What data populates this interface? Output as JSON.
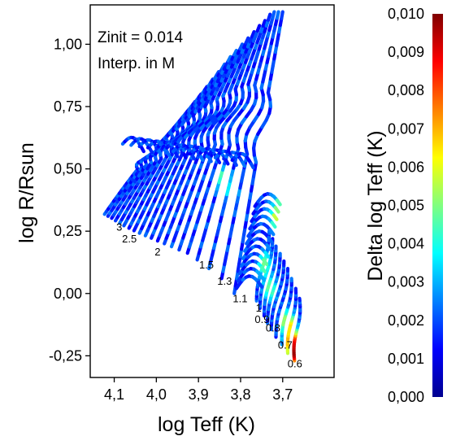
{
  "chart_data": {
    "type": "scatter",
    "title": "",
    "xlabel": "log Teff (K)",
    "ylabel": "log R/Rsun",
    "xlim": [
      4.157,
      3.578
    ],
    "ylim": [
      -0.337,
      1.158
    ],
    "x_reversed": true,
    "xticks": [
      4.1,
      4.0,
      3.9,
      3.8,
      3.7
    ],
    "xtick_labels": [
      "4,1",
      "4,0",
      "3,9",
      "3,8",
      "3,7"
    ],
    "yticks": [
      -0.25,
      0.0,
      0.25,
      0.5,
      0.75,
      1.0
    ],
    "ytick_labels": [
      "-0,25",
      "0,00",
      "0,25",
      "0,50",
      "0,75",
      "1,00"
    ],
    "annotations": [
      "Zinit = 0.014",
      "Interp. in M"
    ],
    "colorbar": {
      "label": "Delta log Teff (K)",
      "range": [
        0.0,
        0.01
      ],
      "ticks": [
        0.0,
        0.001,
        0.002,
        0.003,
        0.004,
        0.005,
        0.006,
        0.007,
        0.008,
        0.009,
        0.01
      ],
      "tick_labels": [
        "0,000",
        "0,001",
        "0,002",
        "0,003",
        "0,004",
        "0,005",
        "0,006",
        "0,007",
        "0,008",
        "0,009",
        "0,010"
      ],
      "colormap": "jet",
      "colors": [
        "#00008f",
        "#0000ff",
        "#0080ff",
        "#00ffff",
        "#80ff80",
        "#ffff00",
        "#ff8000",
        "#ff0000",
        "#800000"
      ]
    },
    "mass_labels": [
      {
        "text": "3",
        "x": 4.088,
        "y": 0.252
      },
      {
        "text": "2.5",
        "x": 4.064,
        "y": 0.205
      },
      {
        "text": "2",
        "x": 3.997,
        "y": 0.153
      },
      {
        "text": "1.5",
        "x": 3.881,
        "y": 0.1
      },
      {
        "text": "1.3",
        "x": 3.838,
        "y": 0.035
      },
      {
        "text": "1.1",
        "x": 3.801,
        "y": -0.035
      },
      {
        "text": "1",
        "x": 3.757,
        "y": -0.072
      },
      {
        "text": "0.9",
        "x": 3.749,
        "y": -0.119
      },
      {
        "text": "0.8",
        "x": 3.723,
        "y": -0.153
      },
      {
        "text": "0.7",
        "x": 3.694,
        "y": -0.221
      },
      {
        "text": "0.6",
        "x": 3.671,
        "y": -0.297
      }
    ],
    "tracks": [
      {
        "mass": 3.0,
        "zams": [
          4.123,
          0.318
        ],
        "top": [
          3.948,
          0.68
        ]
      },
      {
        "mass": 2.9,
        "zams": [
          4.115,
          0.31
        ],
        "top": [
          3.935,
          0.71
        ]
      },
      {
        "mass": 2.8,
        "zams": [
          4.106,
          0.302
        ],
        "top": [
          3.922,
          0.74
        ]
      },
      {
        "mass": 2.7,
        "zams": [
          4.097,
          0.292
        ],
        "top": [
          3.908,
          0.77
        ]
      },
      {
        "mass": 2.6,
        "zams": [
          4.087,
          0.282
        ],
        "top": [
          3.894,
          0.8
        ]
      },
      {
        "mass": 2.5,
        "zams": [
          4.077,
          0.272
        ],
        "top": [
          3.88,
          0.83
        ]
      },
      {
        "mass": 2.4,
        "zams": [
          4.065,
          0.262
        ],
        "top": [
          3.866,
          0.86
        ]
      },
      {
        "mass": 2.3,
        "zams": [
          4.053,
          0.252
        ],
        "top": [
          3.852,
          0.89
        ]
      },
      {
        "mass": 2.2,
        "zams": [
          4.04,
          0.242
        ],
        "top": [
          3.838,
          0.92
        ]
      },
      {
        "mass": 2.1,
        "zams": [
          4.026,
          0.232
        ],
        "top": [
          3.824,
          0.95
        ]
      },
      {
        "mass": 2.0,
        "zams": [
          4.012,
          0.222
        ],
        "top": [
          3.81,
          0.975
        ]
      },
      {
        "mass": 1.9,
        "zams": [
          3.997,
          0.211
        ],
        "top": [
          3.796,
          1.0
        ]
      },
      {
        "mass": 1.8,
        "zams": [
          3.981,
          0.2
        ],
        "top": [
          3.782,
          1.025
        ]
      },
      {
        "mass": 1.7,
        "zams": [
          3.964,
          0.188
        ],
        "top": [
          3.768,
          1.05
        ]
      },
      {
        "mass": 1.6,
        "zams": [
          3.946,
          0.175
        ],
        "top": [
          3.755,
          1.075
        ]
      },
      {
        "mass": 1.5,
        "zams": [
          3.926,
          0.162
        ],
        "top": [
          3.742,
          1.095
        ]
      },
      {
        "mass": 1.4,
        "zams": [
          3.903,
          0.135
        ],
        "top": [
          3.73,
          1.12
        ]
      },
      {
        "mass": 1.3,
        "zams": [
          3.875,
          0.1
        ],
        "top": [
          3.72,
          1.13
        ]
      },
      {
        "mass": 1.2,
        "zams": [
          3.845,
          0.06
        ],
        "top": [
          3.71,
          1.13
        ]
      },
      {
        "mass": 1.1,
        "zams": [
          3.815,
          0.0
        ],
        "top": [
          3.7,
          1.13
        ]
      }
    ],
    "low_mass_tracks": [
      {
        "mass": 1.0,
        "zams": [
          3.762,
          -0.03
        ],
        "top": [
          3.732,
          0.25
        ]
      },
      {
        "mass": 0.95,
        "zams": [
          3.754,
          -0.06
        ],
        "top": [
          3.724,
          0.22
        ]
      },
      {
        "mass": 0.9,
        "zams": [
          3.744,
          -0.09
        ],
        "top": [
          3.716,
          0.19
        ]
      },
      {
        "mass": 0.85,
        "zams": [
          3.736,
          -0.12
        ],
        "top": [
          3.706,
          0.16
        ]
      },
      {
        "mass": 0.8,
        "zams": [
          3.727,
          -0.145
        ],
        "top": [
          3.697,
          0.13
        ]
      },
      {
        "mass": 0.75,
        "zams": [
          3.716,
          -0.175
        ],
        "top": [
          3.688,
          0.1
        ]
      },
      {
        "mass": 0.7,
        "zams": [
          3.702,
          -0.205
        ],
        "top": [
          3.679,
          0.06
        ]
      },
      {
        "mass": 0.65,
        "zams": [
          3.688,
          -0.24
        ],
        "top": [
          3.669,
          0.02
        ]
      },
      {
        "mass": 0.6,
        "zams": [
          3.672,
          -0.27
        ],
        "top": [
          3.66,
          -0.02
        ]
      }
    ],
    "hot_regions": [
      {
        "x": 3.843,
        "y": 0.45,
        "level": 0.005
      },
      {
        "x": 3.822,
        "y": 0.4,
        "level": 0.004
      },
      {
        "x": 3.7,
        "y": 0.35,
        "level": 0.009
      },
      {
        "x": 3.717,
        "y": 0.31,
        "level": 0.006
      },
      {
        "x": 3.744,
        "y": 0.12,
        "level": 0.005
      },
      {
        "x": 3.73,
        "y": 0.02,
        "level": 0.005
      },
      {
        "x": 3.678,
        "y": -0.19,
        "level": 0.009
      },
      {
        "x": 3.67,
        "y": -0.24,
        "level": 0.01
      },
      {
        "x": 3.687,
        "y": -0.12,
        "level": 0.007
      }
    ]
  }
}
